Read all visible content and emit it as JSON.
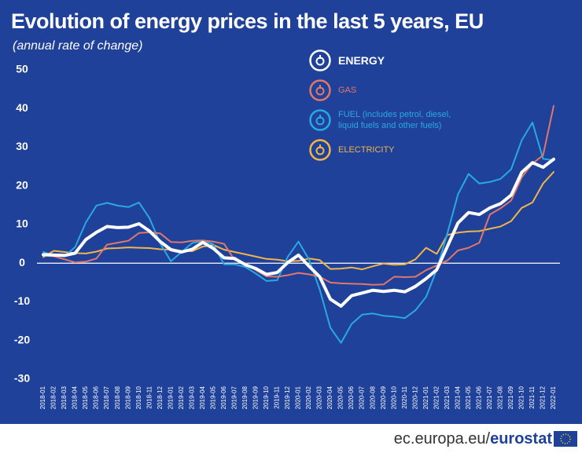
{
  "chart_data": {
    "type": "line",
    "title": "Evolution of energy prices in the last 5 years, EU",
    "subtitle": "(annual rate of change)",
    "categories": [
      "2018-01",
      "2018-02",
      "2018-03",
      "2018-04",
      "2018-05",
      "2018-06",
      "2018-07",
      "2018-08",
      "2018-09",
      "2018-10",
      "2018-11",
      "2018-12",
      "2019-01",
      "2019-02",
      "2019-03",
      "2019-04",
      "2019-05",
      "2019-06",
      "2019-07",
      "2019-08",
      "2019-09",
      "2019-10",
      "2019-11",
      "2019-12",
      "2020-01",
      "2020-02",
      "2020-03",
      "2020-04",
      "2020-05",
      "2020-06",
      "2020-07",
      "2020-08",
      "2020-09",
      "2020-10",
      "2020-11",
      "2020-12",
      "2021-01",
      "2021-02",
      "2021-03",
      "2021-04",
      "2021-05",
      "2021-06",
      "2021-07",
      "2021-08",
      "2021-09",
      "2021-10",
      "2021-11",
      "2021-12",
      "2022-01"
    ],
    "series": [
      {
        "name": "ENERGY",
        "color": "#ffffff",
        "values": [
          2.2,
          2.1,
          2.0,
          2.6,
          6.1,
          8.0,
          9.5,
          9.2,
          9.3,
          10.2,
          8.3,
          5.6,
          3.5,
          2.9,
          3.6,
          5.4,
          3.8,
          1.4,
          1.2,
          -0.4,
          -1.4,
          -2.9,
          -2.4,
          0.2,
          2.1,
          -0.8,
          -3.5,
          -9.3,
          -11.1,
          -8.4,
          -7.7,
          -7.0,
          -7.3,
          -7.0,
          -7.4,
          -6.0,
          -4.0,
          -1.7,
          4.3,
          10.4,
          13.1,
          12.6,
          14.3,
          15.4,
          17.6,
          23.5,
          26.0,
          24.8,
          26.9
        ]
      },
      {
        "name": "GAS",
        "color": "#e0776b",
        "values": [
          2.0,
          1.8,
          1.0,
          0.2,
          0.4,
          1.2,
          4.8,
          5.3,
          5.8,
          7.8,
          8.0,
          7.7,
          5.5,
          5.4,
          5.8,
          5.9,
          5.6,
          5.0,
          0.8,
          0.0,
          -1.8,
          -3.4,
          -3.5,
          -3.1,
          -2.5,
          -2.9,
          -3.5,
          -5.0,
          -5.2,
          -5.3,
          -5.4,
          -5.6,
          -5.5,
          -3.5,
          -3.6,
          -3.5,
          -1.8,
          -0.6,
          0.7,
          3.3,
          4.0,
          5.3,
          12.6,
          14.2,
          16.2,
          22.2,
          25.8,
          27.9,
          40.7
        ]
      },
      {
        "name": "FUEL (includes petrol, diesel, liquid fuels and other fuels)",
        "color": "#29a9e1",
        "values": [
          2.9,
          2.0,
          1.8,
          4.2,
          10.5,
          14.9,
          15.6,
          14.9,
          14.5,
          15.7,
          11.6,
          5.1,
          0.5,
          2.9,
          5.2,
          5.8,
          4.9,
          -0.3,
          -0.3,
          -1.0,
          -2.7,
          -4.6,
          -4.4,
          1.7,
          5.6,
          0.9,
          -6.8,
          -16.7,
          -20.6,
          -15.7,
          -13.3,
          -13.0,
          -13.6,
          -13.8,
          -14.2,
          -12.2,
          -8.7,
          -1.7,
          7.7,
          17.8,
          23.1,
          20.6,
          21.0,
          21.8,
          24.3,
          31.8,
          36.4,
          27.0,
          26.6
        ]
      },
      {
        "name": "ELECTRICITY",
        "color": "#f0b549",
        "values": [
          1.6,
          3.2,
          2.9,
          2.6,
          2.5,
          3.0,
          3.8,
          3.9,
          4.1,
          4.0,
          3.9,
          3.6,
          3.5,
          3.2,
          3.1,
          4.3,
          4.7,
          3.5,
          2.9,
          2.3,
          1.7,
          1.1,
          0.9,
          0.5,
          0.6,
          1.2,
          0.8,
          -1.5,
          -1.4,
          -1.1,
          -1.6,
          -0.8,
          -0.1,
          -0.4,
          -0.3,
          1.0,
          4.0,
          2.4,
          7.3,
          7.9,
          8.2,
          8.3,
          8.9,
          9.5,
          10.9,
          14.3,
          15.7,
          20.6,
          23.6
        ]
      }
    ],
    "ylim": [
      -30,
      50
    ],
    "yticks": [
      -30,
      -20,
      -10,
      0,
      10,
      20,
      30,
      40,
      50
    ],
    "grid": false,
    "zero_line": true
  },
  "footer": {
    "site": "ec.europa.eu/",
    "brand": "eurostat"
  }
}
